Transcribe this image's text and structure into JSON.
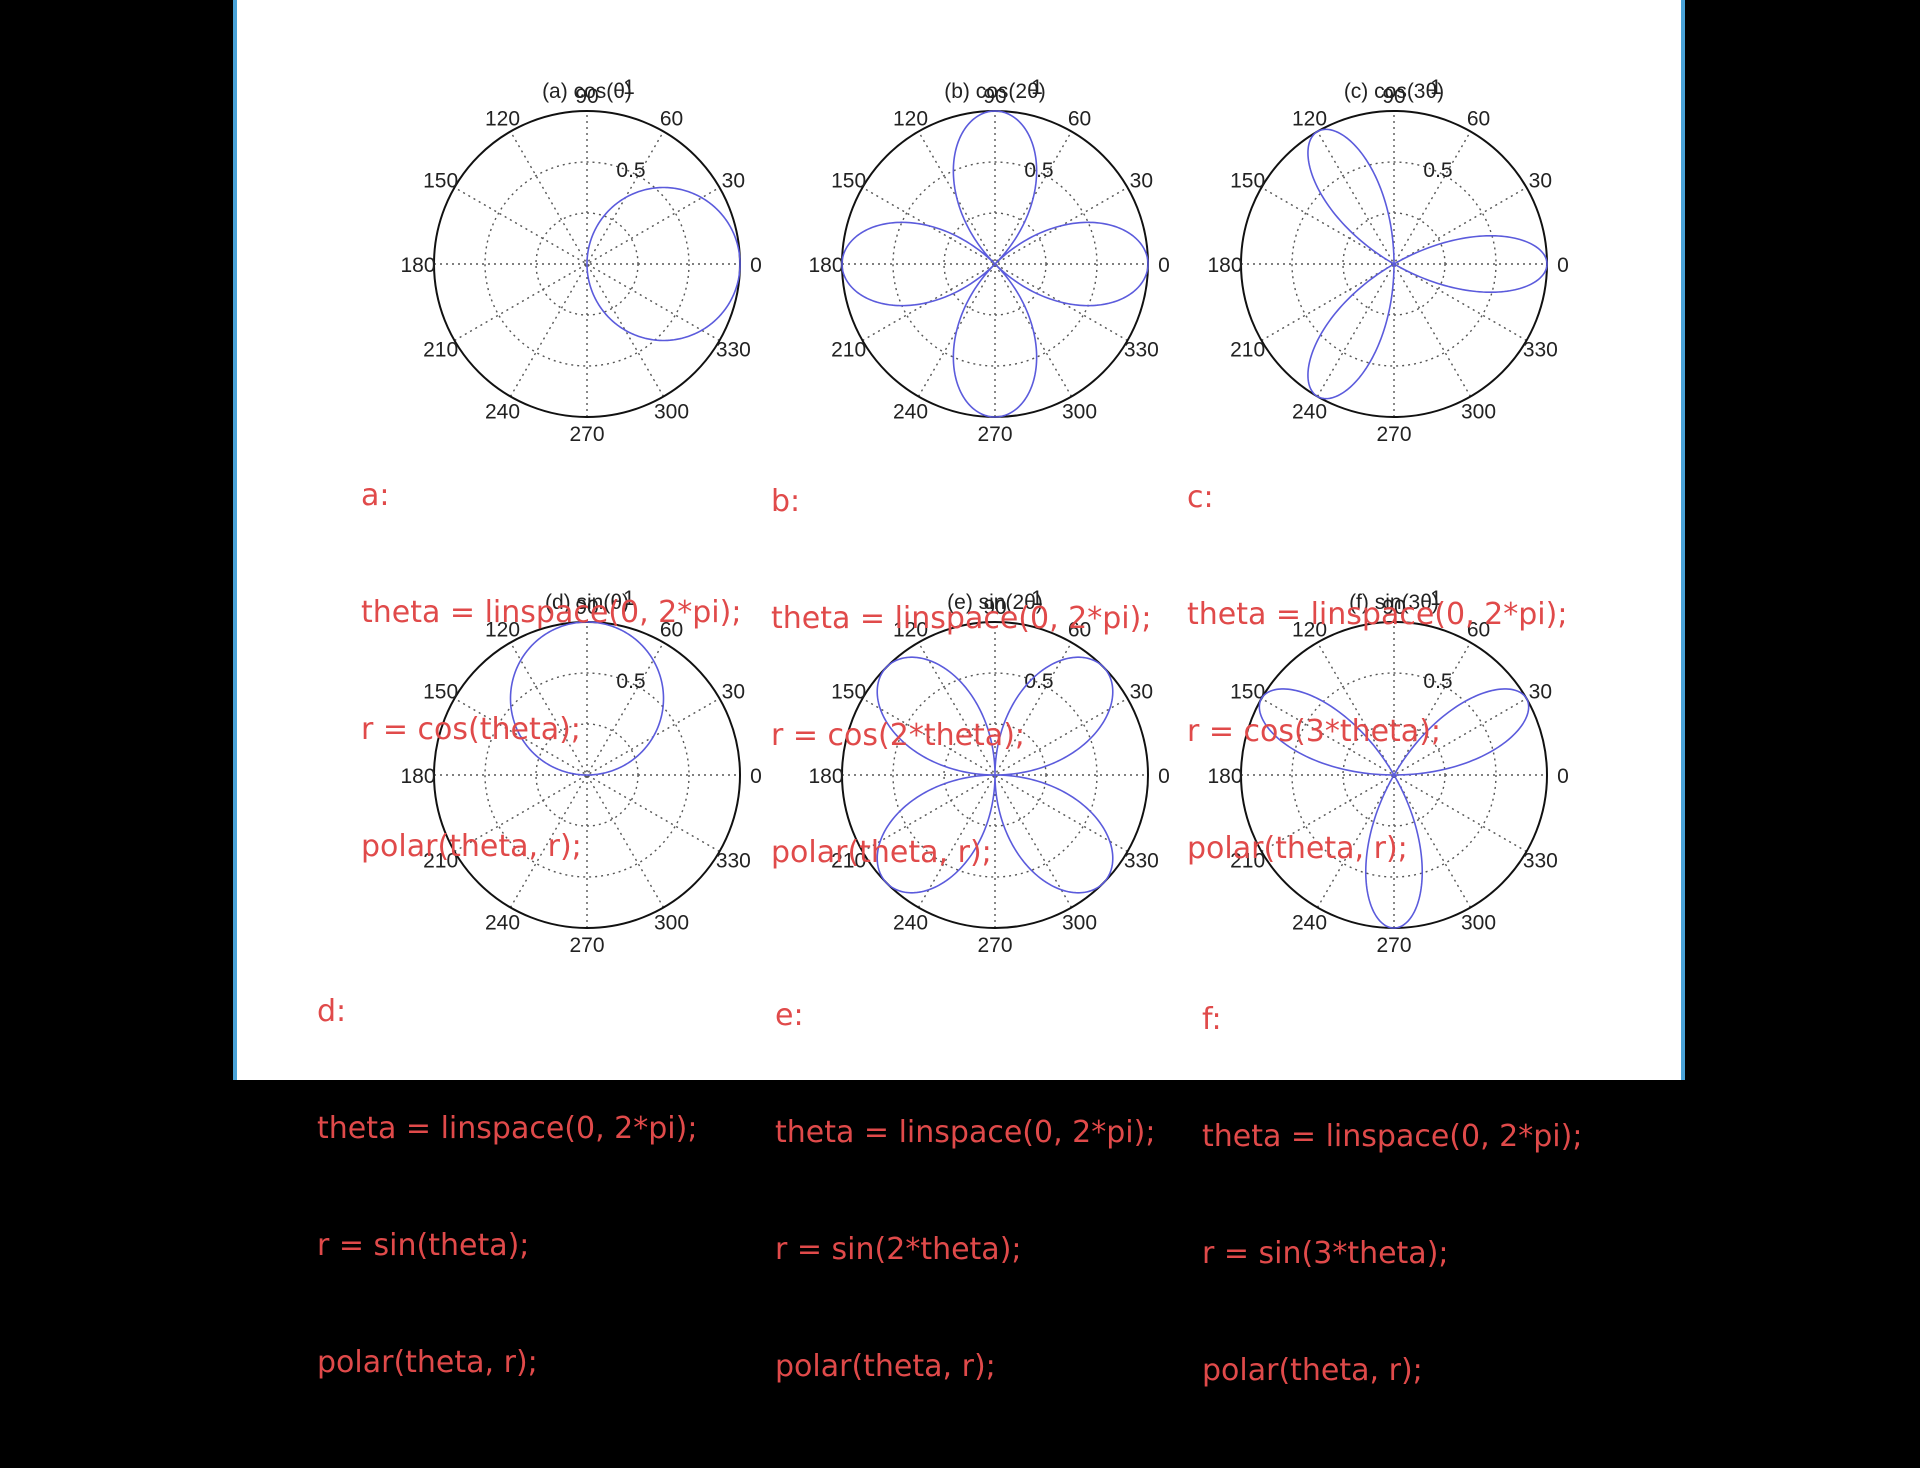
{
  "chart_data": [
    {
      "type": "polar",
      "title": "(a) cos(θ)",
      "equation": "cos",
      "k": 1,
      "rmax": 1,
      "r_ticks": [
        "0.5",
        "1"
      ],
      "angle_ticks": [
        "0",
        "30",
        "60",
        "90",
        "120",
        "150",
        "180",
        "210",
        "240",
        "270",
        "300",
        "330"
      ],
      "grid": true,
      "series_color": "#5b5bdc"
    },
    {
      "type": "polar",
      "title": "(b) cos(2θ)",
      "equation": "cos",
      "k": 2,
      "rmax": 1,
      "r_ticks": [
        "0.5",
        "1"
      ],
      "angle_ticks": [
        "0",
        "30",
        "60",
        "90",
        "120",
        "150",
        "180",
        "210",
        "240",
        "270",
        "300",
        "330"
      ],
      "grid": true,
      "series_color": "#5b5bdc"
    },
    {
      "type": "polar",
      "title": "(c) cos(3θ)",
      "equation": "cos",
      "k": 3,
      "rmax": 1,
      "r_ticks": [
        "0.5",
        "1"
      ],
      "angle_ticks": [
        "0",
        "30",
        "60",
        "90",
        "120",
        "150",
        "180",
        "210",
        "240",
        "270",
        "300",
        "330"
      ],
      "grid": true,
      "series_color": "#5b5bdc"
    },
    {
      "type": "polar",
      "title": "(d) sin(θ)",
      "equation": "sin",
      "k": 1,
      "rmax": 1,
      "r_ticks": [
        "0.5",
        "1"
      ],
      "angle_ticks": [
        "0",
        "30",
        "60",
        "90",
        "120",
        "150",
        "180",
        "210",
        "240",
        "270",
        "300",
        "330"
      ],
      "grid": true,
      "series_color": "#5b5bdc"
    },
    {
      "type": "polar",
      "title": "(e) sin(2θ)",
      "equation": "sin",
      "k": 2,
      "rmax": 1,
      "r_ticks": [
        "0.5",
        "1"
      ],
      "angle_ticks": [
        "0",
        "30",
        "60",
        "90",
        "120",
        "150",
        "180",
        "210",
        "240",
        "270",
        "300",
        "330"
      ],
      "grid": true,
      "series_color": "#5b5bdc"
    },
    {
      "type": "polar",
      "title": "(f) sin(3θ)",
      "equation": "sin",
      "k": 3,
      "rmax": 1,
      "r_ticks": [
        "0.5",
        "1"
      ],
      "angle_ticks": [
        "0",
        "30",
        "60",
        "90",
        "120",
        "150",
        "180",
        "210",
        "240",
        "270",
        "300",
        "330"
      ],
      "grid": true,
      "series_color": "#5b5bdc"
    }
  ],
  "code": {
    "a": {
      "label": "a:",
      "line1": "theta = linspace(0, 2*pi);",
      "line2": "r = cos(theta);",
      "line3": "polar(theta, r);"
    },
    "b": {
      "label": "b:",
      "line1": "theta = linspace(0, 2*pi);",
      "line2": "r = cos(2*theta);",
      "line3": "polar(theta, r);"
    },
    "c": {
      "label": "c:",
      "line1": "theta = linspace(0, 2*pi);",
      "line2": "r = cos(3*theta);",
      "line3": "polar(theta, r);"
    },
    "d": {
      "label": "d:",
      "line1": "theta = linspace(0, 2*pi);",
      "line2": "r = sin(theta);",
      "line3": "polar(theta, r);"
    },
    "e": {
      "label": "e:",
      "line1": "theta = linspace(0, 2*pi);",
      "line2": "r = sin(2*theta);",
      "line3": "polar(theta, r);"
    },
    "f": {
      "label": "f:",
      "line1": "theta = linspace(0, 2*pi);",
      "line2": "r = sin(3*theta);",
      "line3": "polar(theta, r);"
    }
  },
  "colors": {
    "code_text": "#e04a4a",
    "frame_border": "#4aa3d8",
    "background": "#000000"
  }
}
